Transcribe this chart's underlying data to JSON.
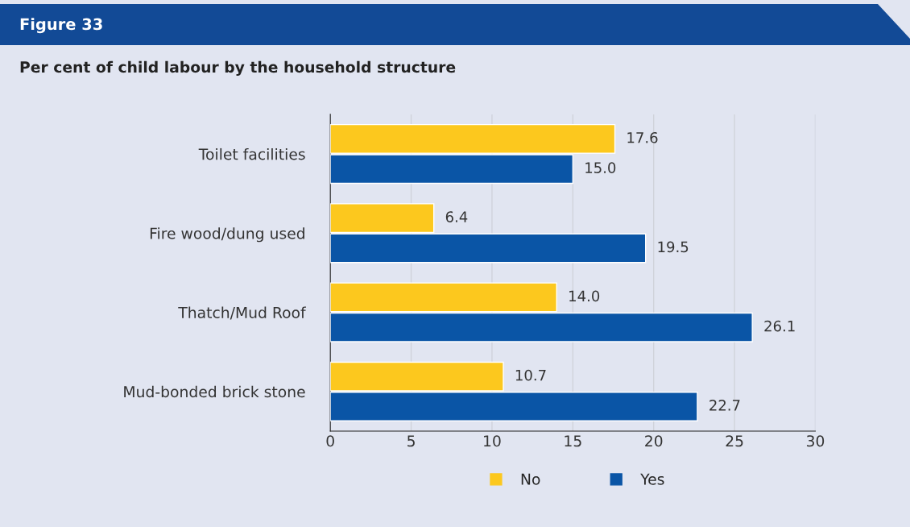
{
  "chart_data": {
    "type": "bar",
    "orientation": "horizontal",
    "title": "Figure 33",
    "subtitle": "Per cent of child labour by the household structure",
    "categories": [
      "Toilet facilities",
      "Fire wood/dung used",
      "Thatch/Mud Roof",
      "Mud-bonded brick stone"
    ],
    "series": [
      {
        "name": "No",
        "color": "#fcc81e",
        "values": [
          17.6,
          6.4,
          14.0,
          10.7
        ],
        "value_labels": [
          "17.6",
          "6.4",
          "14.0",
          "10.7"
        ]
      },
      {
        "name": "Yes",
        "color": "#0a55a6",
        "values": [
          15.0,
          19.5,
          26.1,
          22.7
        ],
        "value_labels": [
          "15.0",
          "19.5",
          "26.1",
          "22.7"
        ]
      }
    ],
    "xlim": [
      0,
      30
    ],
    "xticks": [
      0,
      5,
      10,
      15,
      20,
      25,
      30
    ],
    "grid": "x",
    "legend": "bottom"
  }
}
